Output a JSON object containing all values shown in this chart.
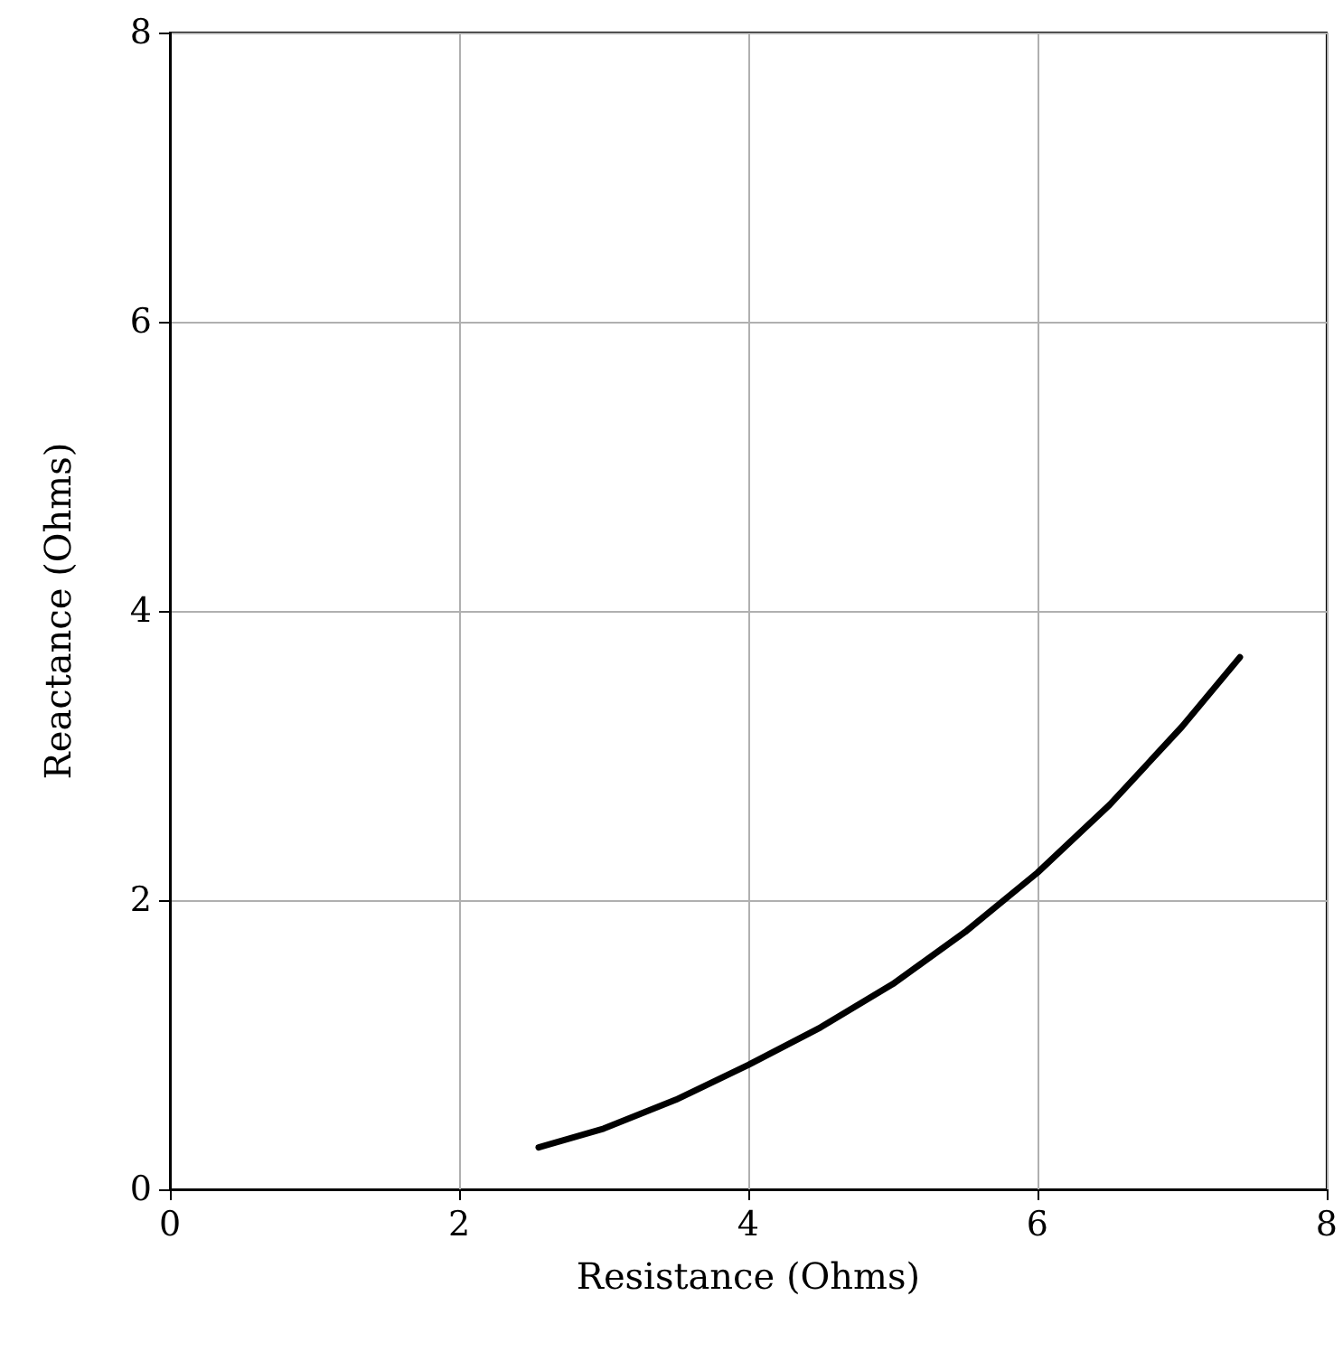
{
  "chart_data": {
    "type": "line",
    "xlabel": "Resistance (Ohms)",
    "ylabel": "Reactance (Ohms)",
    "x": [
      2.55,
      3,
      3.5,
      4,
      4.5,
      5,
      5.5,
      6,
      6.5,
      7,
      7.4
    ],
    "series": [
      {
        "color": "#000000",
        "values": [
          0.29,
          0.42,
          0.62,
          0.86,
          1.12,
          1.42,
          1.78,
          2.19,
          2.66,
          3.2,
          3.68
        ]
      }
    ],
    "xlim": [
      0,
      8
    ],
    "ylim": [
      0,
      8
    ],
    "xticks": [
      0,
      2,
      4,
      6,
      8
    ],
    "yticks": [
      0,
      2,
      4,
      6,
      8
    ],
    "grid": true,
    "marker": "none",
    "line_style": "solid"
  }
}
